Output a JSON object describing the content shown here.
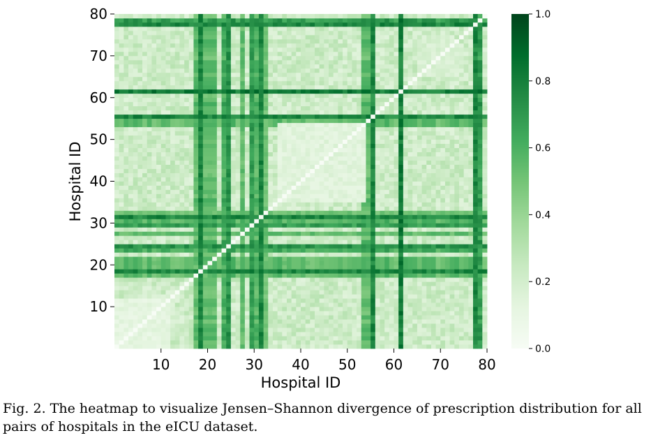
{
  "chart_data": {
    "type": "heatmap",
    "title": "",
    "xlabel": "Hospital ID",
    "ylabel": "Hospital ID",
    "n": 80,
    "x_range": [
      0,
      80
    ],
    "y_range": [
      0,
      80
    ],
    "x_ticks": [
      10,
      20,
      30,
      40,
      50,
      60,
      70,
      80
    ],
    "y_ticks": [
      10,
      20,
      30,
      40,
      50,
      60,
      70,
      80
    ],
    "value_range": [
      0.0,
      1.0
    ],
    "colorbar_ticks": [
      "0.0",
      "0.2",
      "0.4",
      "0.6",
      "0.8",
      "1.0"
    ],
    "colormap": "Greens",
    "colormap_stops": [
      "#f7fcf5",
      "#e5f5e0",
      "#c7e9c0",
      "#a1d99b",
      "#74c476",
      "#41ab5d",
      "#238b45",
      "#006d2c",
      "#00441b"
    ],
    "diagonal_value": 0.0,
    "background_level": 0.22,
    "high_divergence_hospitals": [
      {
        "id": 19,
        "level": 0.85
      },
      {
        "id": 21,
        "level": 0.55
      },
      {
        "id": 24,
        "level": 0.6
      },
      {
        "id": 25,
        "level": 0.8
      },
      {
        "id": 28,
        "level": 0.6
      },
      {
        "id": 30,
        "level": 0.75
      },
      {
        "id": 32,
        "level": 0.85
      },
      {
        "id": 33,
        "level": 0.55
      },
      {
        "id": 56,
        "level": 0.85
      },
      {
        "id": 62,
        "level": 0.9
      },
      {
        "id": 78,
        "level": 0.85
      }
    ],
    "low_divergence_blocks": [
      {
        "from": 1,
        "to": 12,
        "level": 0.08
      },
      {
        "from": 36,
        "to": 54,
        "level": 0.1
      },
      {
        "from": 66,
        "to": 74,
        "level": 0.14
      }
    ],
    "dark_row_bands": [
      {
        "rows": [
          18,
          19,
          20,
          21,
          22
        ],
        "level": 0.62
      },
      {
        "rows": [
          24,
          25
        ],
        "level": 0.7
      },
      {
        "rows": [
          31,
          32
        ],
        "level": 0.65
      },
      {
        "rows": [
          54,
          55,
          56
        ],
        "level": 0.62
      },
      {
        "rows": [
          78,
          79
        ],
        "level": 0.78
      }
    ]
  },
  "caption": "Fig. 2.  The heatmap to visualize Jensen–Shannon divergence of prescription distribution for all pairs of hospitals in the eICU dataset."
}
